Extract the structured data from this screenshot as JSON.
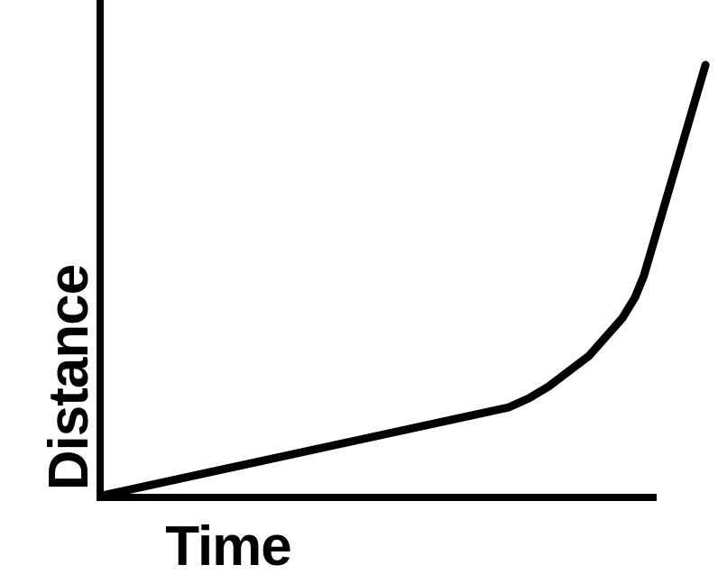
{
  "colors": {
    "background": "#ffffff",
    "axis": "#000000",
    "curve": "#000000",
    "label_text": "#000000"
  },
  "chart_data": {
    "type": "line",
    "title": "",
    "xlabel": "Time",
    "ylabel": "Distance",
    "x_tick_labels": [],
    "y_tick_labels": [],
    "xlim": [
      0,
      1
    ],
    "ylim": [
      0,
      1
    ],
    "grid": false,
    "legend": false,
    "axes_style": "L-shaped thick black axes, no ticks, no arrowheads, no scale numbers",
    "description": "Qualitative distance-time graph: a shallow, nearly straight segment from the origin (slow constant speed), then a sharp bend upward into a very steep, nearly straight climb (rapid acceleration). The curve extends slightly beyond the drawn end of the time axis.",
    "series": [
      {
        "name": "distance",
        "points": [
          [
            0.0,
            0.0
          ],
          [
            0.733,
            0.178
          ],
          [
            0.769,
            0.196
          ],
          [
            0.805,
            0.22
          ],
          [
            0.878,
            0.282
          ],
          [
            0.938,
            0.358
          ],
          [
            0.961,
            0.4
          ],
          [
            0.977,
            0.444
          ],
          [
            1.088,
            0.869
          ]
        ]
      }
    ]
  }
}
